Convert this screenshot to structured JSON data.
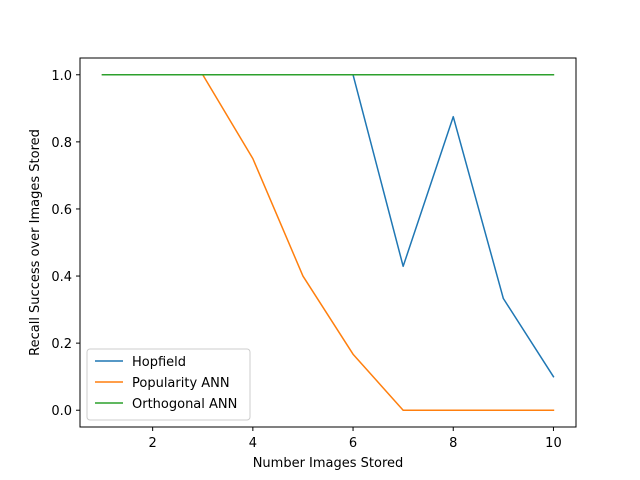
{
  "chart_data": {
    "type": "line",
    "title": "",
    "xlabel": "Number Images Stored",
    "ylabel": "Recall Success over Images Stored",
    "x": [
      1,
      2,
      3,
      4,
      5,
      6,
      7,
      8,
      9,
      10
    ],
    "xlim": [
      0.55,
      10.45
    ],
    "ylim": [
      -0.05,
      1.05
    ],
    "xticks": [
      2,
      4,
      6,
      8,
      10
    ],
    "yticks": [
      0.0,
      0.2,
      0.4,
      0.6,
      0.8,
      1.0
    ],
    "xtick_labels": [
      "2",
      "4",
      "6",
      "8",
      "10"
    ],
    "ytick_labels": [
      "0.0",
      "0.2",
      "0.4",
      "0.6",
      "0.8",
      "1.0"
    ],
    "grid": false,
    "legend_position": "lower-left",
    "series": [
      {
        "name": "Hopfield",
        "color": "#1f77b4",
        "values": [
          1.0,
          1.0,
          1.0,
          1.0,
          1.0,
          1.0,
          0.429,
          0.875,
          0.333,
          0.1
        ]
      },
      {
        "name": "Popularity ANN",
        "color": "#ff7f0e",
        "values": [
          1.0,
          1.0,
          1.0,
          0.75,
          0.4,
          0.167,
          0.0,
          0.0,
          0.0,
          0.0
        ]
      },
      {
        "name": "Orthogonal ANN",
        "color": "#2ca02c",
        "values": [
          1.0,
          1.0,
          1.0,
          1.0,
          1.0,
          1.0,
          1.0,
          1.0,
          1.0,
          1.0
        ]
      }
    ]
  }
}
